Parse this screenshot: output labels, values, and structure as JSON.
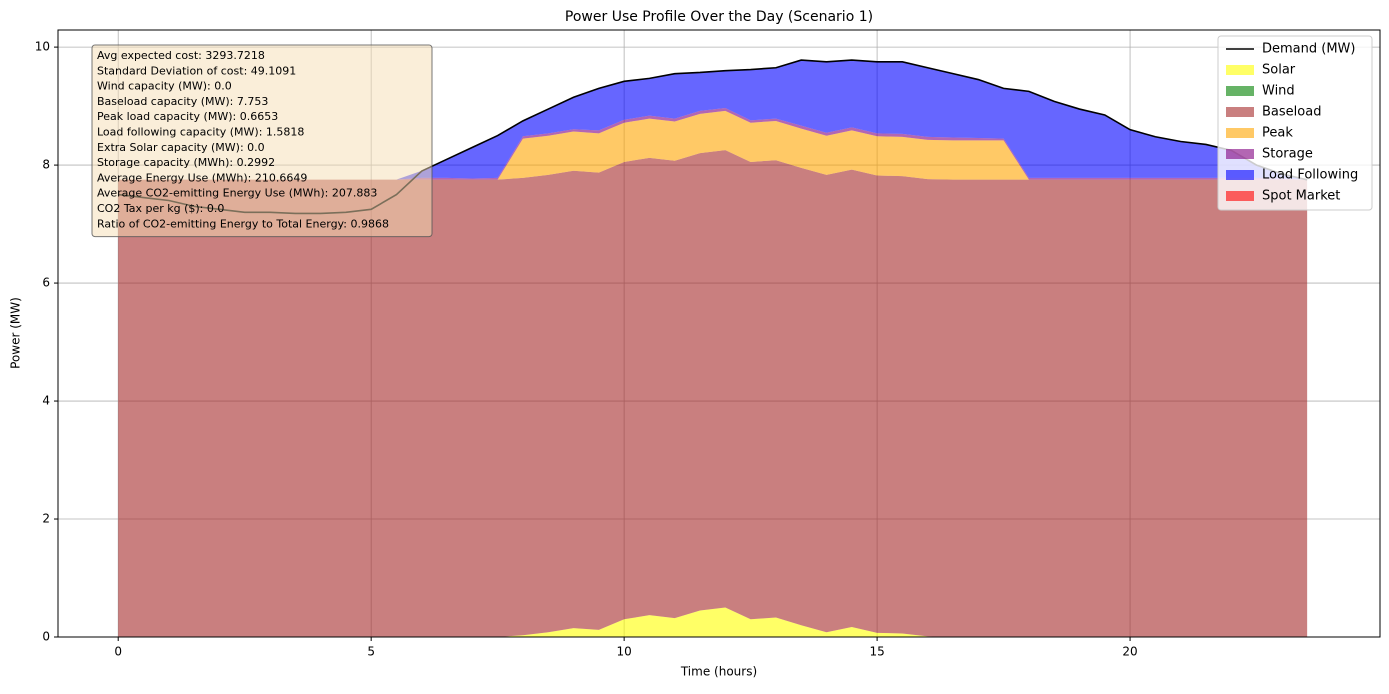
{
  "chart_data": {
    "type": "stacked_area",
    "title": "Power Use Profile Over the Day (Scenario 1)",
    "xlabel": "Time (hours)",
    "ylabel": "Power (MW)",
    "xlim": [
      -1.19,
      24.94
    ],
    "ylim": [
      0,
      10.29
    ],
    "xticks": [
      0,
      5,
      10,
      15,
      20
    ],
    "yticks": [
      0,
      2,
      4,
      6,
      8,
      10
    ],
    "grid": true,
    "legend": "upper right",
    "x": [
      0,
      0.5,
      1,
      1.5,
      2,
      2.5,
      3,
      3.5,
      4,
      4.5,
      5,
      5.5,
      6,
      6.5,
      7,
      7.5,
      8,
      8.5,
      9,
      9.5,
      10,
      10.5,
      11,
      11.5,
      12,
      12.5,
      13,
      13.5,
      14,
      14.5,
      15,
      15.5,
      16,
      16.5,
      17,
      17.5,
      18,
      18.5,
      19,
      19.5,
      20,
      20.5,
      21,
      21.5,
      22,
      22.5,
      23,
      23.5
    ],
    "series": [
      {
        "name": "Demand (MW)",
        "kind": "line",
        "color": "#000000",
        "values": [
          7.5,
          7.45,
          7.4,
          7.3,
          7.25,
          7.2,
          7.2,
          7.18,
          7.18,
          7.2,
          7.25,
          7.5,
          7.9,
          8.1,
          8.3,
          8.5,
          8.75,
          8.95,
          9.15,
          9.3,
          9.42,
          9.47,
          9.55,
          9.57,
          9.6,
          9.62,
          9.65,
          9.78,
          9.75,
          9.78,
          9.75,
          9.75,
          9.65,
          9.55,
          9.45,
          9.3,
          9.25,
          9.08,
          8.95,
          8.85,
          8.6,
          8.48,
          8.4,
          8.35,
          8.25,
          8.0,
          7.85,
          7.75
        ]
      },
      {
        "name": "Solar",
        "kind": "area",
        "color": "#ffff00",
        "values": [
          0,
          0,
          0,
          0,
          0,
          0,
          0,
          0,
          0,
          0,
          0,
          0,
          0,
          0,
          0,
          0,
          0.03,
          0.08,
          0.15,
          0.12,
          0.3,
          0.37,
          0.32,
          0.45,
          0.5,
          0.3,
          0.33,
          0.2,
          0.08,
          0.17,
          0.07,
          0.06,
          0.01,
          0,
          0,
          0,
          0,
          0,
          0,
          0,
          0,
          0,
          0,
          0,
          0,
          0,
          0,
          0
        ]
      },
      {
        "name": "Wind",
        "kind": "area",
        "color": "#008000",
        "values": [
          0,
          0,
          0,
          0,
          0,
          0,
          0,
          0,
          0,
          0,
          0,
          0,
          0,
          0,
          0,
          0,
          0,
          0,
          0,
          0,
          0,
          0,
          0,
          0,
          0,
          0,
          0,
          0,
          0,
          0,
          0,
          0,
          0,
          0,
          0,
          0,
          0,
          0,
          0,
          0,
          0,
          0,
          0,
          0,
          0,
          0,
          0,
          0
        ]
      },
      {
        "name": "Baseload",
        "kind": "area",
        "color": "#a52a2a",
        "values": [
          7.753,
          7.753,
          7.753,
          7.753,
          7.753,
          7.753,
          7.753,
          7.753,
          7.753,
          7.753,
          7.753,
          7.753,
          7.753,
          7.753,
          7.753,
          7.753,
          7.753,
          7.753,
          7.753,
          7.753,
          7.753,
          7.753,
          7.753,
          7.753,
          7.753,
          7.753,
          7.753,
          7.753,
          7.753,
          7.753,
          7.753,
          7.753,
          7.753,
          7.753,
          7.753,
          7.753,
          7.753,
          7.753,
          7.753,
          7.753,
          7.753,
          7.753,
          7.753,
          7.753,
          7.753,
          7.753,
          7.753,
          7.753
        ]
      },
      {
        "name": "Peak",
        "kind": "area",
        "color": "#ffa500",
        "values": [
          0,
          0,
          0,
          0,
          0,
          0,
          0,
          0,
          0,
          0,
          0,
          0,
          0,
          0,
          0,
          0,
          0.6653,
          0.6653,
          0.6653,
          0.6653,
          0.6653,
          0.6653,
          0.6653,
          0.6653,
          0.6653,
          0.6653,
          0.6653,
          0.6653,
          0.6653,
          0.6653,
          0.6653,
          0.6653,
          0.6653,
          0.6653,
          0.6653,
          0.6653,
          0,
          0,
          0,
          0,
          0,
          0,
          0,
          0,
          0,
          0,
          0,
          0
        ]
      },
      {
        "name": "Storage",
        "kind": "area",
        "color": "#800080",
        "values": [
          0,
          0,
          0,
          0,
          0,
          0,
          0,
          0,
          0,
          0,
          0,
          0,
          0.03,
          0.03,
          0.02,
          0.03,
          0.04,
          0.04,
          0.04,
          0.05,
          0.05,
          0.05,
          0.05,
          0.05,
          0.05,
          0.04,
          0.04,
          0.05,
          0.05,
          0.05,
          0.05,
          0.05,
          0.05,
          0.05,
          0.04,
          0.03,
          0.03,
          0.03,
          0.03,
          0.03,
          0.03,
          0.03,
          0.03,
          0.03,
          0.03,
          0.03,
          0.02,
          0
        ]
      },
      {
        "name": "Load Following",
        "kind": "area",
        "color": "#0000ff",
        "values": [
          0,
          0,
          0,
          0,
          0,
          0,
          0,
          0,
          0,
          0,
          0,
          0,
          0.12,
          0.32,
          0.53,
          0.72,
          0.26,
          0.41,
          0.54,
          0.71,
          0.65,
          0.63,
          0.76,
          0.65,
          0.63,
          0.86,
          0.86,
          1.11,
          1.2,
          1.14,
          1.21,
          1.22,
          1.17,
          1.08,
          0.99,
          0.85,
          1.47,
          1.3,
          1.17,
          1.07,
          0.82,
          0.7,
          0.62,
          0.57,
          0.47,
          0.22,
          0.08,
          0
        ]
      },
      {
        "name": "Spot Market",
        "kind": "area",
        "color": "#ff0000",
        "values": [
          0,
          0,
          0,
          0,
          0,
          0,
          0,
          0,
          0,
          0,
          0,
          0,
          0,
          0,
          0,
          0,
          0,
          0,
          0,
          0,
          0,
          0,
          0,
          0,
          0,
          0,
          0,
          0,
          0,
          0,
          0,
          0,
          0,
          0,
          0,
          0,
          0,
          0,
          0,
          0,
          0,
          0,
          0,
          0,
          0,
          0,
          0,
          0
        ]
      }
    ],
    "annotation_lines": [
      "Avg expected cost: 3293.7218",
      "Standard Deviation of cost: 49.1091",
      "Wind capacity (MW): 0.0",
      "Baseload capacity (MW): 7.753",
      "Peak load capacity (MW): 0.6653",
      "Load following capacity (MW): 1.5818",
      "Extra Solar capacity (MW): 0.0",
      "Storage capacity (MWh): 0.2992",
      "Average Energy Use (MWh): 210.6649",
      "Average CO2-emitting Energy Use (MWh): 207.883",
      "CO2 Tax per kg ($): 0.0",
      "Ratio of CO2-emitting Energy to Total Energy: 0.9868"
    ]
  }
}
